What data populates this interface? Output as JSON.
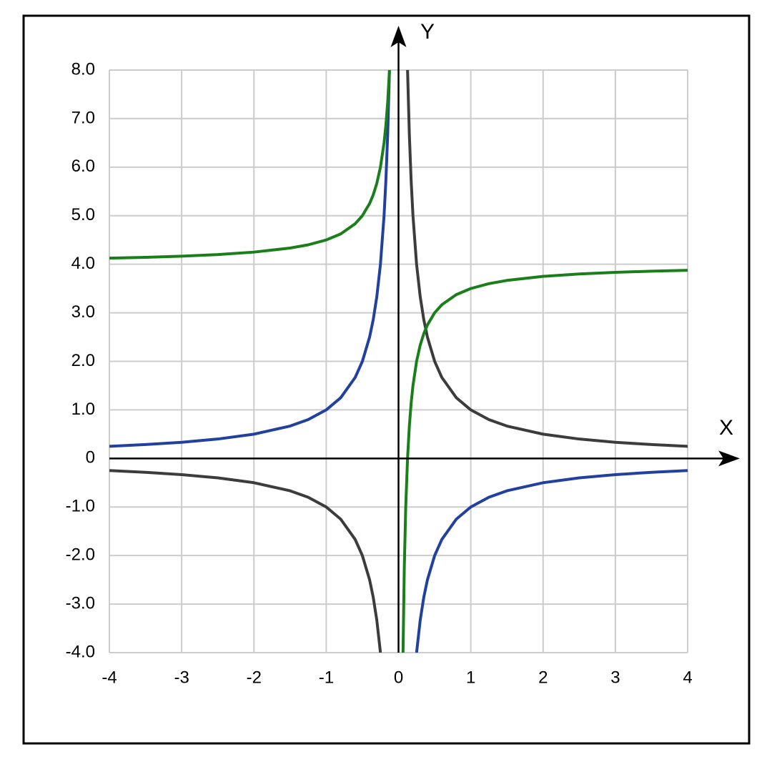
{
  "chart_data": {
    "type": "line",
    "x_label": "X",
    "y_label": "Y",
    "x": [
      -4,
      -3.5,
      -3,
      -2.5,
      -2,
      -1.5,
      -1.25,
      -1,
      -0.8,
      -0.6,
      -0.5,
      -0.4,
      -0.35,
      -0.3,
      -0.25,
      -0.2,
      -0.175,
      -0.15,
      -0.125,
      0,
      0.0625,
      0.08,
      0.1,
      0.125,
      0.15,
      0.175,
      0.2,
      0.25,
      0.3,
      0.35,
      0.4,
      0.5,
      0.6,
      0.8,
      1,
      1.25,
      1.5,
      2,
      2.5,
      3,
      3.5,
      4
    ],
    "series": [
      {
        "color": "#3c3c3c",
        "values": [
          -0.25,
          -0.2857,
          -0.3333,
          -0.4,
          -0.5,
          -0.6667,
          -0.8,
          -1,
          -1.25,
          -1.6667,
          -2,
          -2.5,
          -2.8571,
          -3.3333,
          -4,
          null,
          null,
          null,
          null,
          null,
          null,
          null,
          null,
          8,
          6.6667,
          5.7143,
          5,
          4,
          3.3333,
          2.8571,
          2.5,
          2,
          1.6667,
          1.25,
          1,
          0.8,
          0.6667,
          0.5,
          0.4,
          0.3333,
          0.2857,
          0.25
        ]
      },
      {
        "color": "#2140a0",
        "values": [
          0.25,
          0.2857,
          0.3333,
          0.4,
          0.5,
          0.6667,
          0.8,
          1,
          1.25,
          1.6667,
          2,
          2.5,
          2.8571,
          3.3333,
          4,
          5,
          5.7143,
          6.6667,
          8,
          null,
          null,
          null,
          null,
          null,
          null,
          null,
          null,
          -4,
          -3.3333,
          -2.8571,
          -2.5,
          -2,
          -1.6667,
          -1.25,
          -1,
          -0.8,
          -0.6667,
          -0.5,
          -0.4,
          -0.3333,
          -0.2857,
          -0.25
        ]
      },
      {
        "color": "#1a7f1a",
        "values": [
          4.125,
          4.1429,
          4.1667,
          4.2,
          4.25,
          4.3333,
          4.4,
          4.5,
          4.625,
          4.8333,
          5,
          5.25,
          5.4286,
          5.6667,
          6,
          6.5,
          6.8571,
          7.3333,
          8,
          null,
          -4,
          -2.25,
          -1,
          0,
          0.6667,
          1.1429,
          1.5,
          2,
          2.3333,
          2.5714,
          2.75,
          3,
          3.1667,
          3.375,
          3.5,
          3.6,
          3.6667,
          3.75,
          3.8,
          3.8333,
          3.8571,
          3.875
        ]
      }
    ],
    "xlim": [
      -4,
      4
    ],
    "ylim": [
      -4,
      8
    ],
    "xticks": [
      -4,
      -3,
      -2,
      -1,
      0,
      1,
      2,
      3,
      4
    ],
    "yticks": [
      {
        "value": -4,
        "label": "-4.0"
      },
      {
        "value": -3,
        "label": "-3.0"
      },
      {
        "value": -2,
        "label": "-2.0"
      },
      {
        "value": -1,
        "label": "-1.0"
      },
      0,
      {
        "value": 1,
        "label": "1.0"
      },
      {
        "value": 2,
        "label": "2.0"
      },
      {
        "value": 3,
        "label": "3.0"
      },
      {
        "value": 4,
        "label": "4.0"
      },
      {
        "value": 5,
        "label": "5.0"
      },
      {
        "value": 6,
        "label": "6.0"
      },
      {
        "value": 7,
        "label": "7.0"
      },
      {
        "value": 8,
        "label": "8.0"
      }
    ],
    "grid": true
  }
}
